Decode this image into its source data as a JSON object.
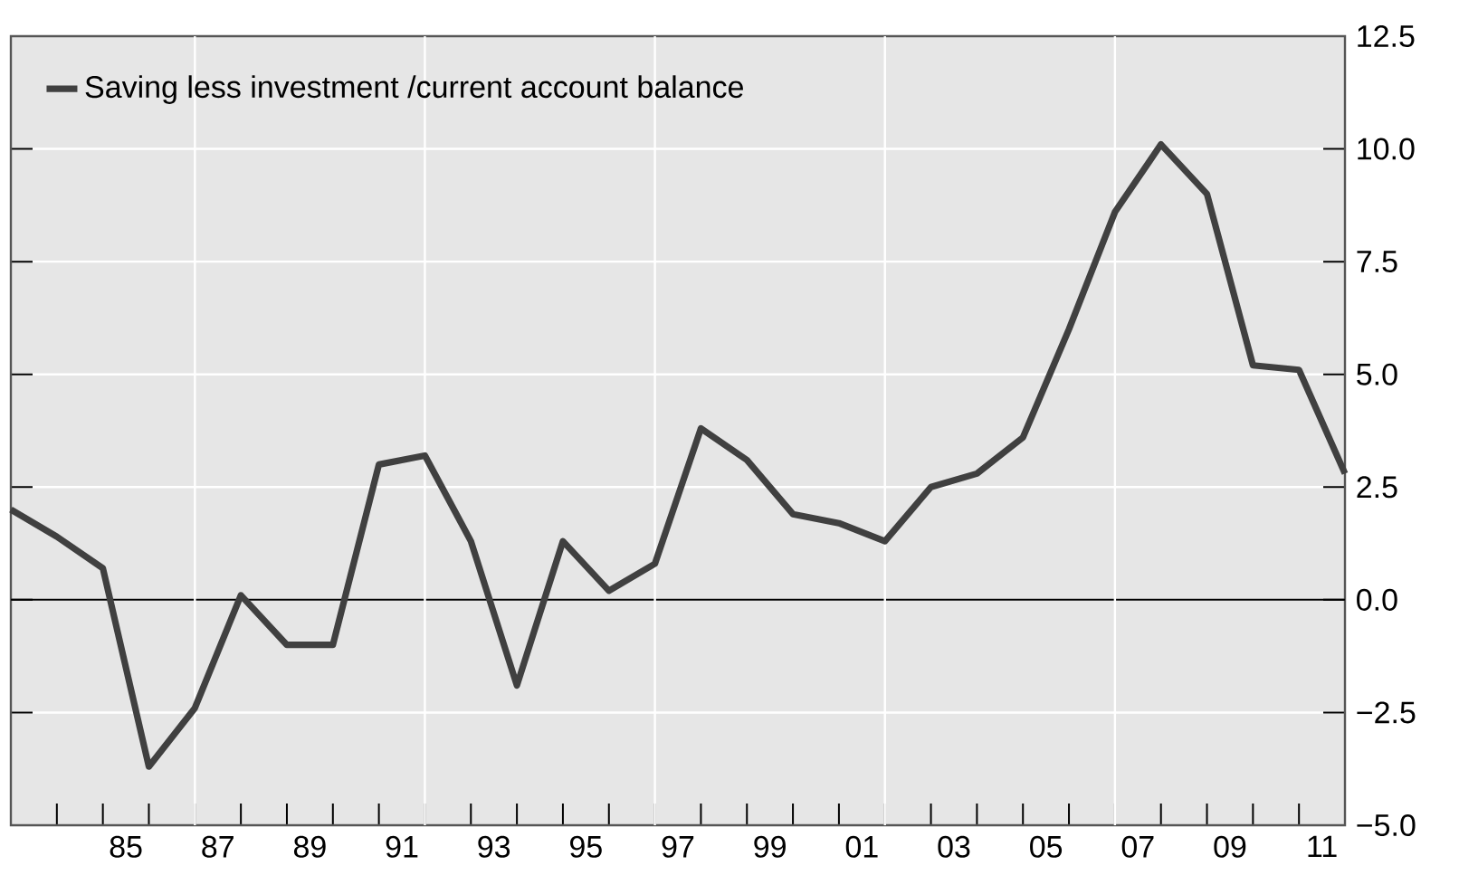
{
  "chart_data": {
    "type": "line",
    "x": [
      "1983",
      "1984",
      "1985",
      "1986",
      "1987",
      "1988",
      "1989",
      "1990",
      "1991",
      "1992",
      "1993",
      "1994",
      "1995",
      "1996",
      "1997",
      "1998",
      "1999",
      "2000",
      "2001",
      "2002",
      "2003",
      "2004",
      "2005",
      "2006",
      "2007",
      "2008",
      "2009",
      "2010",
      "2011",
      "2012"
    ],
    "series": [
      {
        "name": "Saving less investment /current account balance",
        "color": "#404040",
        "values": [
          2.0,
          1.4,
          0.7,
          -3.7,
          -2.4,
          0.1,
          -1.0,
          -1.0,
          3.0,
          3.2,
          1.3,
          -1.9,
          1.3,
          0.2,
          0.8,
          3.8,
          3.1,
          1.9,
          1.7,
          1.3,
          2.5,
          2.8,
          3.6,
          6.0,
          8.6,
          10.1,
          9.0,
          5.2,
          5.1,
          2.8
        ]
      }
    ],
    "xlim": [
      "1983",
      "2012"
    ],
    "ylim": [
      -5,
      12.5
    ],
    "xticks": [
      {
        "value": "1984",
        "label": null
      },
      {
        "value": "1985",
        "label": null
      },
      {
        "value": "1986",
        "label": null
      },
      {
        "value": "1987",
        "label": null
      },
      {
        "value": "1988",
        "label": null
      },
      {
        "value": "1989",
        "label": null
      },
      {
        "value": "1990",
        "label": null
      },
      {
        "value": "1991",
        "label": null
      },
      {
        "value": "1992",
        "label": null
      },
      {
        "value": "1993",
        "label": null
      },
      {
        "value": "1994",
        "label": null
      },
      {
        "value": "1995",
        "label": null
      },
      {
        "value": "1996",
        "label": null
      },
      {
        "value": "1997",
        "label": null
      },
      {
        "value": "1998",
        "label": null
      },
      {
        "value": "1999",
        "label": null
      },
      {
        "value": "2000",
        "label": null
      },
      {
        "value": "2001",
        "label": null
      },
      {
        "value": "2002",
        "label": null
      },
      {
        "value": "2003",
        "label": null
      },
      {
        "value": "2004",
        "label": null
      },
      {
        "value": "2005",
        "label": null
      },
      {
        "value": "2006",
        "label": null
      },
      {
        "value": "2007",
        "label": null
      },
      {
        "value": "2008",
        "label": null
      },
      {
        "value": "2009",
        "label": null
      },
      {
        "value": "2010",
        "label": null
      },
      {
        "value": "2011",
        "label": null
      },
      {
        "value": "1985-07",
        "label": "85"
      },
      {
        "value": "1987-07",
        "label": "87"
      },
      {
        "value": "1989-07",
        "label": "89"
      },
      {
        "value": "1991-07",
        "label": "91"
      },
      {
        "value": "1993-07",
        "label": "93"
      },
      {
        "value": "1995-07",
        "label": "95"
      },
      {
        "value": "1997-07",
        "label": "97"
      },
      {
        "value": "1999-07",
        "label": "99"
      },
      {
        "value": "2001-07",
        "label": "01"
      },
      {
        "value": "2003-07",
        "label": "03"
      },
      {
        "value": "2005-07",
        "label": "05"
      },
      {
        "value": "2007-07",
        "label": "07"
      },
      {
        "value": "2009-07",
        "label": "09"
      },
      {
        "value": "2011-07",
        "label": "11"
      }
    ],
    "yticks": [
      {
        "value": -5,
        "label": "−5.0"
      },
      {
        "value": -2.5,
        "label": "−2.5"
      },
      {
        "value": 0,
        "label": "0.0"
      },
      {
        "value": 2.5,
        "label": "2.5"
      },
      {
        "value": 5,
        "label": "5.0"
      },
      {
        "value": 7.5,
        "label": "7.5"
      },
      {
        "value": 10,
        "label": "10.0"
      },
      {
        "value": 12.5,
        "label": "12.5"
      }
    ],
    "grid": "y",
    "ref_lines": [
      {
        "axis": "y",
        "value": 0,
        "color": "#000000"
      },
      {
        "axis": "x",
        "value": "1987",
        "color": "#ffffff"
      },
      {
        "axis": "x",
        "value": "1992",
        "color": "#ffffff"
      },
      {
        "axis": "x",
        "value": "1997",
        "color": "#ffffff"
      },
      {
        "axis": "x",
        "value": "2002",
        "color": "#ffffff"
      },
      {
        "axis": "x",
        "value": "2007",
        "color": "#ffffff"
      }
    ],
    "legend": "top left",
    "marker": "none",
    "line_style": "solid"
  }
}
